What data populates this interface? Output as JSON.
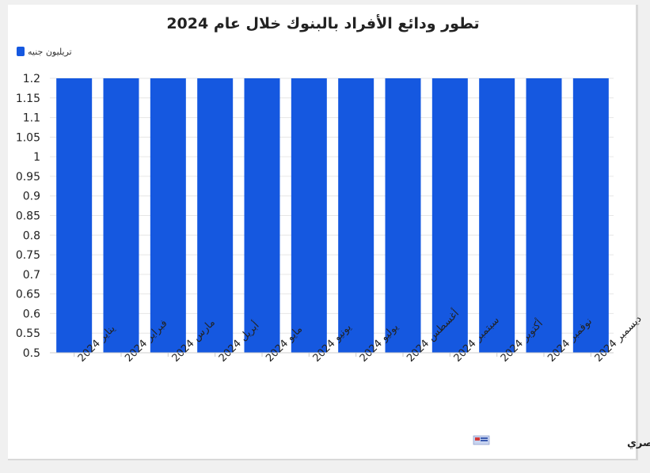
{
  "chart_data": {
    "type": "bar",
    "title": "تطور ودائع الأفراد بالبنوك خلال عام 2024",
    "legend": {
      "position": "top-left",
      "label": "تريليون جنيه"
    },
    "categories": [
      "يناير 2024",
      "فبراير 2024",
      "مارس 2024",
      "أبريل 2024",
      "مايو 2024",
      "يونيو 2024",
      "يوليو 2024",
      "أغسطس 2024",
      "سبتمبر 2024",
      "أكتوبر 2024",
      "نوفمبر 2024",
      "ديسمبر 2024"
    ],
    "series": [
      {
        "name": "تريليون جنيه",
        "values": [
          1.2,
          1.2,
          1.2,
          1.2,
          1.2,
          1.2,
          1.2,
          1.2,
          1.2,
          1.2,
          1.2,
          1.2
        ],
        "color": "#1558e0"
      }
    ],
    "y_ticks": [
      "1.2",
      "1.15",
      "1.1",
      "1.05",
      "1",
      "0.95",
      "0.9",
      "0.85",
      "0.8",
      "0.75",
      "0.7",
      "0.65",
      "0.6",
      "0.55",
      "0.5"
    ],
    "ylim": [
      0.5,
      1.2
    ],
    "grid": true,
    "source": "المصدر: البنك المركزي المصري"
  }
}
